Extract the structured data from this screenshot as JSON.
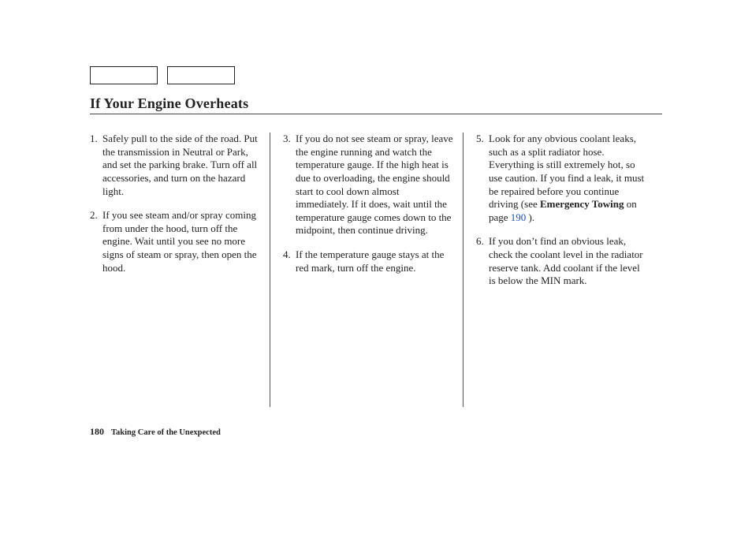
{
  "title": "If Your Engine Overheats",
  "steps": {
    "s1": {
      "n": "1.",
      "t": "Safely pull to the side of the road. Put the transmission in Neutral or Park, and set the parking brake. Turn off all accessories, and turn on the hazard light."
    },
    "s2": {
      "n": "2.",
      "t": "If you see steam and/or spray coming from under the hood, turn off the engine. Wait until you see no more signs of steam or spray, then open the hood."
    },
    "s3": {
      "n": "3.",
      "t": "If you do not see steam or spray, leave the engine running and watch the temperature gauge. If the high heat is due to overloading, the engine should start to cool down almost immediately. If it does, wait until the temperature gauge comes down to the midpoint, then continue driving."
    },
    "s4": {
      "n": "4.",
      "t": "If the temperature gauge stays at the red mark, turn off the engine."
    },
    "s5": {
      "n": "5.",
      "pre": "Look for any obvious coolant leaks, such as a split radiator hose. Everything is still extremely hot, so use caution. If you find a leak, it must be repaired before you continue driving (see ",
      "bold": "Emergency Towing",
      "mid": " on page ",
      "link": "190",
      "post": " )."
    },
    "s6": {
      "n": "6.",
      "t": "If you don’t find an obvious leak, check the coolant level in the radiator reserve tank. Add coolant if the level is below the MIN mark."
    }
  },
  "footer": {
    "page": "180",
    "section": "Taking Care of the Unexpected"
  }
}
